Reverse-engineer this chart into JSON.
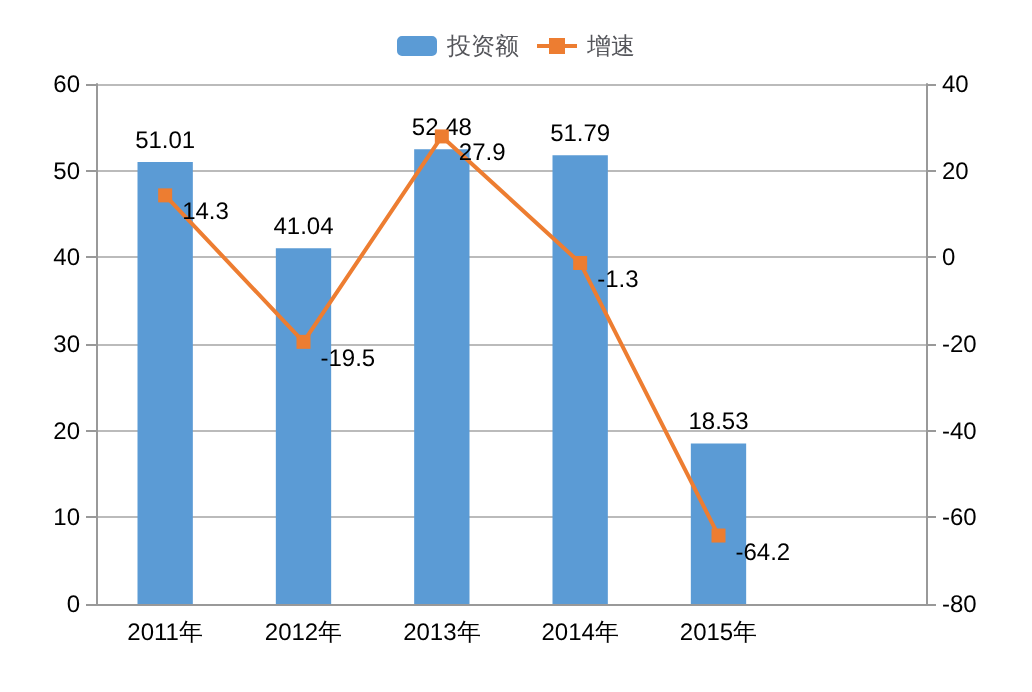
{
  "chart_data": {
    "type": "bar",
    "categories": [
      "2011年",
      "2012年",
      "2013年",
      "2014年",
      "2015年",
      null
    ],
    "series": [
      {
        "name": "投资额",
        "color": "#5b9bd5",
        "values": [
          51.01,
          41.04,
          52.48,
          51.79,
          18.53,
          null
        ]
      },
      {
        "name": "增速",
        "type": "line",
        "axis": "y2",
        "color": "#ed7d31",
        "values": [
          14.3,
          -19.5,
          27.9,
          -1.3,
          -64.2,
          null
        ]
      }
    ],
    "ylim": [
      0,
      60
    ],
    "yticks": [
      0,
      10,
      20,
      30,
      40,
      50,
      60
    ],
    "y2lim": [
      -80,
      40
    ],
    "y2ticks": [
      -80,
      -60,
      -40,
      -20,
      0,
      20,
      40
    ],
    "grid": "y",
    "legend": "top",
    "marker": "square",
    "line_style": "solid",
    "data_labels": true
  }
}
